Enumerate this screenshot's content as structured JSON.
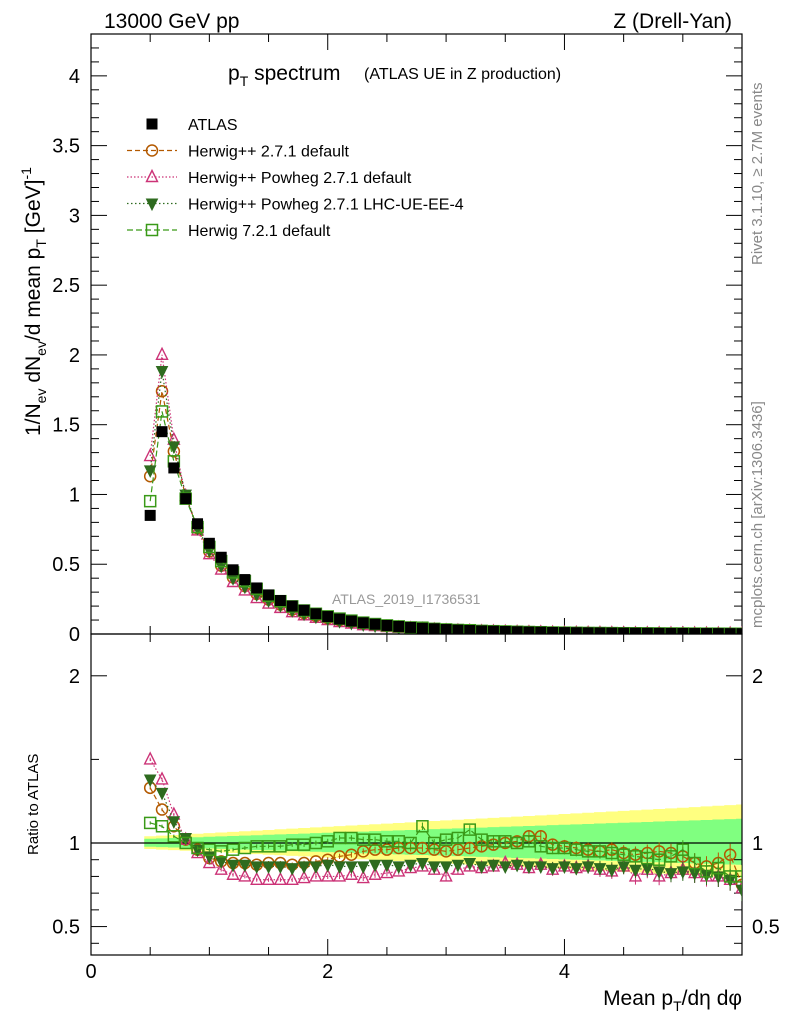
{
  "header": {
    "energy": "13000 GeV pp",
    "process": "Z (Drell-Yan)"
  },
  "side": {
    "rivet": "Rivet 3.1.10, ≥ 2.7M events",
    "mcplots": "mcplots.cern.ch [arXiv:1306.3436]"
  },
  "colors": {
    "atlas": "#000000",
    "herwigpp": "#b35900",
    "powheg": "#cc3377",
    "powheg_ee4": "#2e6b1f",
    "herwig7": "#3a9a18",
    "band_yellow": "#ffff80",
    "band_green": "#80ff80"
  },
  "chart_data": {
    "type": "scatter",
    "title_main": "p",
    "title_main_sub": "T",
    "title_main_rest": " spectrum",
    "title_sub": "(ATLAS UE in Z production)",
    "analysis_id": "ATLAS_2019_I1736531",
    "ylabel_top": "1/N",
    "ylabel_ev": "ev",
    "ylabel_mid": " dN",
    "ylabel_mid2": "/d mean p",
    "ylabel_T": "T",
    "ylabel_unit": " [GeV]",
    "ylabel_exp": "-1",
    "ylabel_ratio": "Ratio to ATLAS",
    "xlabel_a": "Mean p",
    "xlabel_T": "T",
    "xlabel_b": "/dη dφ",
    "xlim": [
      0,
      5.5
    ],
    "ylim_main": [
      0,
      4.3
    ],
    "ylim_ratio": [
      0.33,
      2.25
    ],
    "x_ticks": [
      "0",
      "2",
      "4"
    ],
    "main_ticks": [
      "0",
      "0.5",
      "1",
      "1.5",
      "2",
      "2.5",
      "3",
      "3.5",
      "4"
    ],
    "ratio_ticks": [
      "0.5",
      "1",
      "2"
    ],
    "x": [
      0.5,
      0.6,
      0.7,
      0.8,
      0.9,
      1.0,
      1.1,
      1.2,
      1.3,
      1.4,
      1.5,
      1.6,
      1.7,
      1.8,
      1.9,
      2.0,
      2.1,
      2.2,
      2.3,
      2.4,
      2.5,
      2.6,
      2.7,
      2.8,
      2.9,
      3.0,
      3.1,
      3.2,
      3.3,
      3.4,
      3.5,
      3.6,
      3.7,
      3.8,
      3.9,
      4.0,
      4.1,
      4.2,
      4.3,
      4.4,
      4.5,
      4.6,
      4.7,
      4.8,
      4.9,
      5.0,
      5.1,
      5.2,
      5.3,
      5.4,
      5.5
    ],
    "atlas": [
      0.85,
      1.45,
      1.19,
      0.97,
      0.79,
      0.65,
      0.55,
      0.46,
      0.39,
      0.33,
      0.28,
      0.24,
      0.2,
      0.17,
      0.145,
      0.125,
      0.107,
      0.093,
      0.08,
      0.07,
      0.061,
      0.054,
      0.047,
      0.041,
      0.037,
      0.032,
      0.028,
      0.025,
      0.022,
      0.02,
      0.018,
      0.016,
      0.014,
      0.013,
      0.011,
      0.01,
      0.009,
      0.008,
      0.0075,
      0.0068,
      0.006,
      0.0055,
      0.005,
      0.0045,
      0.004,
      0.0037,
      0.0033,
      0.003,
      0.0028,
      0.0025,
      0.0023
    ],
    "series": [
      {
        "name": "ATLAS",
        "key": "atlas",
        "ratio": []
      },
      {
        "name": "Herwig++ 2.7.1 default",
        "key": "herwigpp",
        "ratio": [
          1.33,
          1.2,
          1.1,
          1.02,
          0.96,
          0.91,
          0.89,
          0.88,
          0.88,
          0.87,
          0.88,
          0.88,
          0.87,
          0.88,
          0.89,
          0.9,
          0.92,
          0.93,
          0.95,
          0.96,
          0.96,
          0.97,
          0.97,
          0.97,
          0.96,
          0.95,
          0.96,
          0.97,
          0.98,
          0.99,
          1.0,
          1.01,
          1.04,
          1.04,
          0.99,
          0.98,
          0.97,
          0.96,
          0.95,
          0.96,
          0.94,
          0.93,
          0.94,
          0.95,
          0.94,
          0.92,
          0.88,
          0.86,
          0.88,
          0.93,
          0.75
        ]
      },
      {
        "name": "Herwig++ Powheg 2.7.1 default",
        "key": "powheg",
        "ratio": [
          1.5,
          1.38,
          1.17,
          1.02,
          0.94,
          0.88,
          0.84,
          0.81,
          0.8,
          0.78,
          0.78,
          0.78,
          0.78,
          0.79,
          0.8,
          0.8,
          0.8,
          0.81,
          0.79,
          0.81,
          0.82,
          0.83,
          0.85,
          0.86,
          0.84,
          0.8,
          0.84,
          0.86,
          0.85,
          0.86,
          0.88,
          0.87,
          0.85,
          0.87,
          0.84,
          0.86,
          0.85,
          0.86,
          0.84,
          0.83,
          0.86,
          0.8,
          0.84,
          0.8,
          0.82,
          0.84,
          0.82,
          0.8,
          0.8,
          0.78,
          0.73
        ]
      },
      {
        "name": "Herwig++ Powheg 2.7.1 LHC-UE-EE-4",
        "key": "powheg_ee4",
        "ratio": [
          1.38,
          1.3,
          1.13,
          1.03,
          0.96,
          0.92,
          0.89,
          0.87,
          0.87,
          0.86,
          0.86,
          0.86,
          0.85,
          0.86,
          0.86,
          0.87,
          0.86,
          0.86,
          0.86,
          0.87,
          0.87,
          0.86,
          0.87,
          0.88,
          0.86,
          0.86,
          0.87,
          0.88,
          0.86,
          0.87,
          0.86,
          0.87,
          0.86,
          0.86,
          0.85,
          0.86,
          0.85,
          0.86,
          0.85,
          0.84,
          0.86,
          0.84,
          0.85,
          0.83,
          0.82,
          0.83,
          0.82,
          0.81,
          0.8,
          0.78,
          0.72
        ]
      },
      {
        "name": "Herwig 7.2.1 default",
        "key": "herwig7",
        "ratio": [
          1.12,
          1.1,
          1.04,
          1.0,
          0.97,
          0.96,
          0.95,
          0.96,
          0.97,
          0.98,
          0.98,
          0.98,
          0.99,
          0.99,
          1.0,
          1.01,
          1.03,
          1.03,
          1.02,
          1.02,
          1.01,
          1.01,
          1.0,
          1.1,
          1.0,
          1.02,
          1.03,
          1.08,
          1.02,
          1.01,
          1.01,
          1.0,
          1.01,
          0.98,
          0.97,
          0.97,
          0.96,
          0.95,
          0.95,
          0.94,
          0.93,
          0.92,
          0.91,
          0.9,
          0.92,
          0.96,
          0.88,
          0.83,
          0.85,
          0.8,
          0.8
        ]
      }
    ]
  }
}
